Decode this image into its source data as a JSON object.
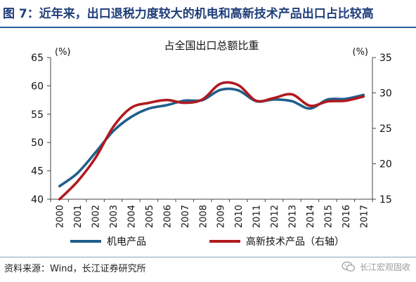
{
  "figure": {
    "title": "图 7：近年来，出口退税力度较大的机电和高新技术产品出口占比较高",
    "source": "资料来源：Wind，长江证券研究所",
    "watermark": "长江宏观固收"
  },
  "colors": {
    "title_blue": "#1f3f7a",
    "series1": "#1f5f8b",
    "series2": "#b01a1f",
    "rule": "#2a5a9a"
  },
  "icons": {
    "watermark_logo": "wechat-icon"
  },
  "chart_data": {
    "type": "line",
    "title": "占全国出口总额比重",
    "left_axis": {
      "unit_label": "(%)",
      "ylim": [
        40,
        65
      ],
      "ticks": [
        40,
        45,
        50,
        55,
        60,
        65
      ]
    },
    "right_axis": {
      "unit_label": "(%)",
      "ylim": [
        15,
        35
      ],
      "ticks": [
        15,
        20,
        25,
        30,
        35
      ]
    },
    "x": [
      "2000",
      "2001",
      "2002",
      "2003",
      "2004",
      "2005",
      "2006",
      "2007",
      "2008",
      "2009",
      "2010",
      "2011",
      "2012",
      "2013",
      "2014",
      "2015",
      "2016",
      "2017"
    ],
    "grid": false,
    "legend_position": "bottom",
    "series": [
      {
        "name": "机电产品",
        "axis": "left",
        "color": "#1f5f8b",
        "values": [
          42.3,
          44.6,
          48.2,
          52.0,
          54.5,
          56.0,
          56.6,
          57.4,
          57.5,
          59.3,
          59.2,
          57.3,
          57.6,
          57.3,
          56.0,
          57.6,
          57.7,
          58.4
        ]
      },
      {
        "name": "高新技术产品（右轴）",
        "axis": "right",
        "color": "#b01a1f",
        "values": [
          15.0,
          17.5,
          20.8,
          25.2,
          27.9,
          28.6,
          29.0,
          28.6,
          29.1,
          31.3,
          31.1,
          28.9,
          29.3,
          29.8,
          28.2,
          28.8,
          28.9,
          29.5
        ]
      }
    ]
  }
}
